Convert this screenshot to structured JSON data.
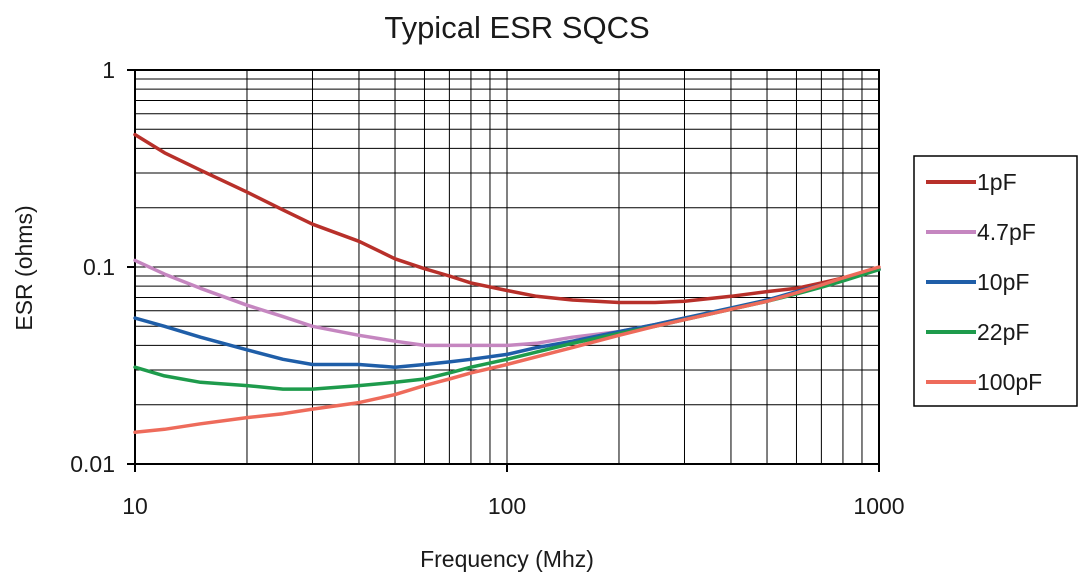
{
  "chart_data": {
    "type": "line",
    "title": "Typical ESR SQCS",
    "xlabel": "Frequency (Mhz)",
    "ylabel": "ESR (ohms)",
    "x_scale": "log",
    "y_scale": "log",
    "xlim": [
      10,
      1000
    ],
    "ylim": [
      0.01,
      1
    ],
    "x_ticks": [
      {
        "value": 10,
        "label": "10"
      },
      {
        "value": 100,
        "label": "100"
      },
      {
        "value": 1000,
        "label": "1000"
      }
    ],
    "y_ticks": [
      {
        "value": 0.01,
        "label": "0.01"
      },
      {
        "value": 0.1,
        "label": "0.1"
      },
      {
        "value": 1,
        "label": "1"
      }
    ],
    "grid": true,
    "legend_position": "right",
    "series": [
      {
        "name": "1pF",
        "color": "#b8302a",
        "x": [
          10,
          12,
          15,
          20,
          25,
          30,
          40,
          50,
          60,
          70,
          80,
          100,
          120,
          150,
          200,
          250,
          300,
          400,
          500,
          600,
          700,
          800,
          1000
        ],
        "y": [
          0.47,
          0.38,
          0.31,
          0.24,
          0.195,
          0.165,
          0.135,
          0.11,
          0.098,
          0.09,
          0.083,
          0.076,
          0.071,
          0.068,
          0.066,
          0.066,
          0.067,
          0.071,
          0.075,
          0.078,
          0.083,
          0.088,
          0.098
        ]
      },
      {
        "name": "4.7pF",
        "color": "#c586c0",
        "x": [
          10,
          12,
          15,
          20,
          25,
          30,
          40,
          50,
          60,
          70,
          80,
          100,
          120,
          150,
          200,
          250,
          300,
          400,
          500,
          600,
          700,
          800,
          1000
        ],
        "y": [
          0.108,
          0.092,
          0.078,
          0.064,
          0.056,
          0.05,
          0.045,
          0.042,
          0.04,
          0.04,
          0.04,
          0.04,
          0.041,
          0.044,
          0.047,
          0.051,
          0.055,
          0.061,
          0.068,
          0.074,
          0.08,
          0.086,
          0.098
        ]
      },
      {
        "name": "10pF",
        "color": "#1f5ea8",
        "x": [
          10,
          12,
          15,
          20,
          25,
          30,
          40,
          50,
          60,
          70,
          80,
          100,
          120,
          150,
          200,
          250,
          300,
          400,
          500,
          600,
          700,
          800,
          1000
        ],
        "y": [
          0.055,
          0.05,
          0.044,
          0.038,
          0.034,
          0.032,
          0.032,
          0.031,
          0.032,
          0.033,
          0.034,
          0.036,
          0.039,
          0.042,
          0.047,
          0.051,
          0.055,
          0.062,
          0.068,
          0.075,
          0.081,
          0.087,
          0.097
        ]
      },
      {
        "name": "22pF",
        "color": "#1e9b4c",
        "x": [
          10,
          12,
          15,
          20,
          25,
          30,
          40,
          50,
          60,
          70,
          80,
          100,
          120,
          150,
          200,
          250,
          300,
          400,
          500,
          600,
          700,
          800,
          1000
        ],
        "y": [
          0.031,
          0.028,
          0.026,
          0.025,
          0.024,
          0.024,
          0.025,
          0.026,
          0.027,
          0.029,
          0.031,
          0.034,
          0.037,
          0.041,
          0.046,
          0.05,
          0.054,
          0.061,
          0.067,
          0.073,
          0.079,
          0.085,
          0.097
        ]
      },
      {
        "name": "100pF",
        "color": "#ee6b5b",
        "x": [
          10,
          12,
          15,
          20,
          25,
          30,
          40,
          50,
          60,
          70,
          80,
          100,
          120,
          150,
          200,
          250,
          300,
          400,
          500,
          600,
          700,
          800,
          1000
        ],
        "y": [
          0.0145,
          0.015,
          0.016,
          0.0172,
          0.018,
          0.019,
          0.0205,
          0.0225,
          0.025,
          0.027,
          0.029,
          0.032,
          0.035,
          0.039,
          0.045,
          0.05,
          0.054,
          0.061,
          0.067,
          0.074,
          0.081,
          0.088,
          0.1
        ]
      }
    ]
  }
}
